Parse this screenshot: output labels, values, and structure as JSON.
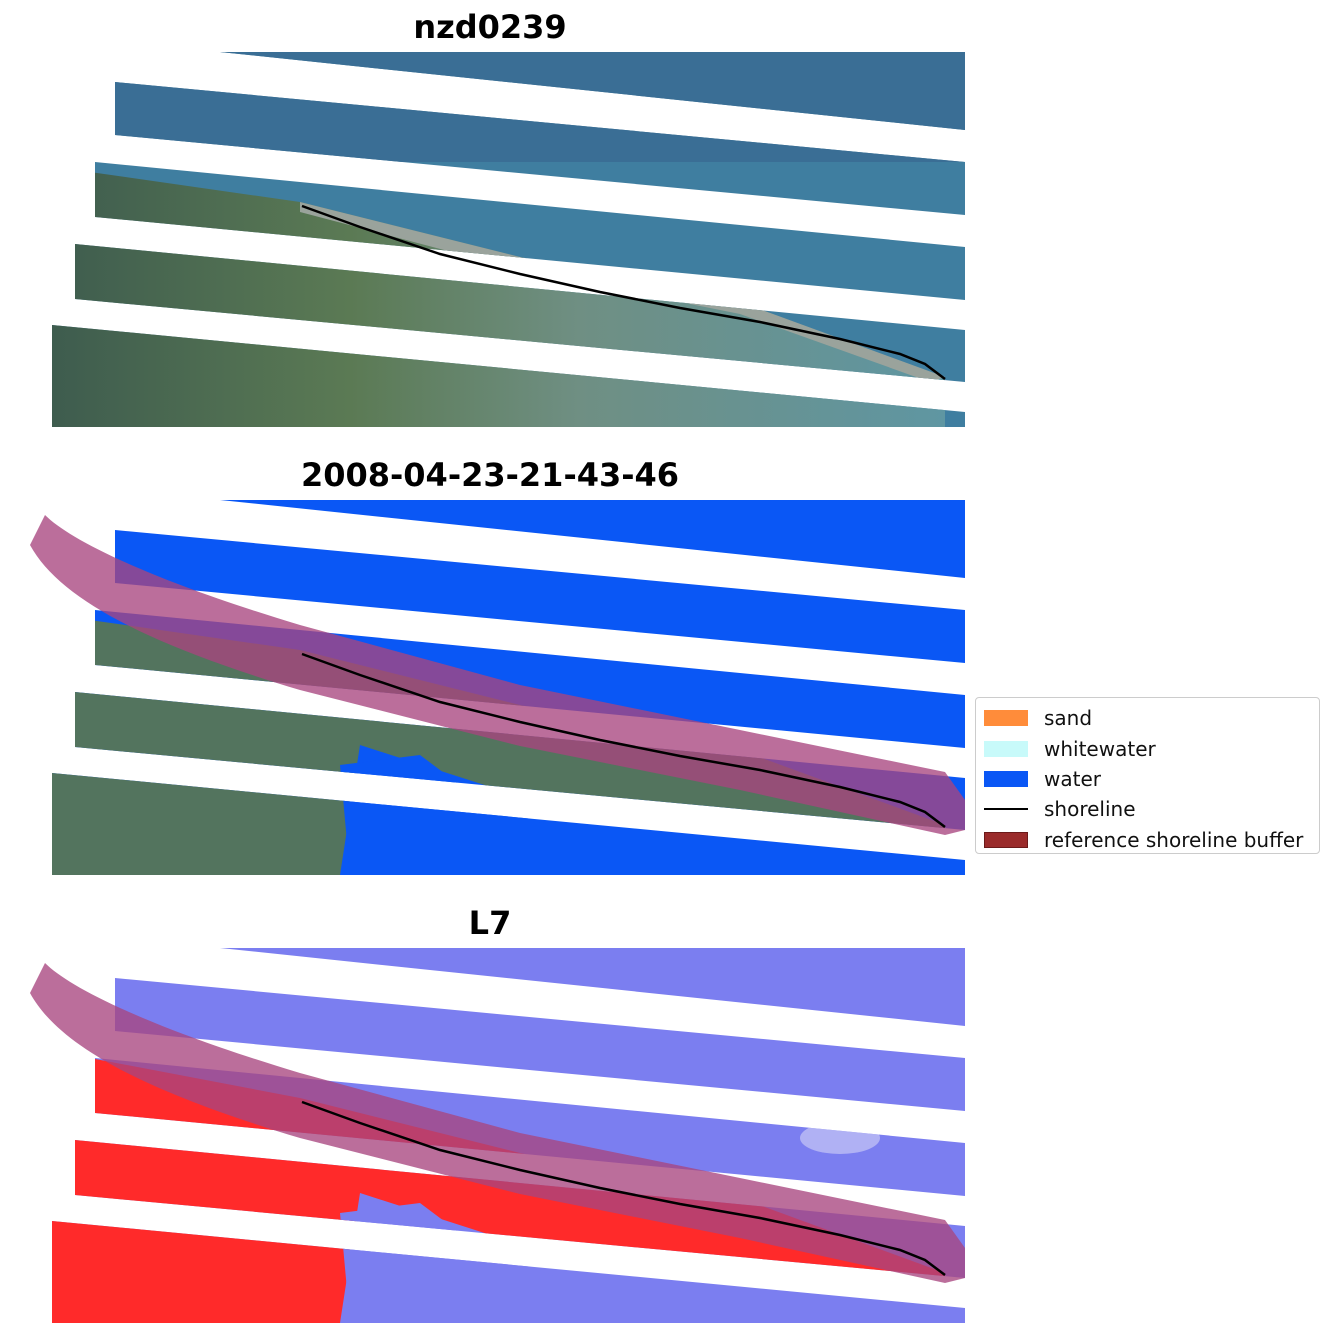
{
  "panels": [
    {
      "title": "nzd0239",
      "mode": "rgb"
    },
    {
      "title": "2008-04-23-21-43-46",
      "mode": "classified"
    },
    {
      "title": "L7",
      "mode": "index"
    }
  ],
  "colors": {
    "water_rgb": "#3f7ea0",
    "land_rgb": "#4f6e52",
    "water_class": "#0a57f5",
    "index_water": "#7b7ef0",
    "index_land": "#ff2a2a",
    "buffer": "#a8457f",
    "shoreline": "#000000"
  },
  "legend": {
    "items": [
      {
        "label": "sand",
        "color": "#ff8c3a",
        "kind": "patch"
      },
      {
        "label": "whitewater",
        "color": "#c8fafa",
        "kind": "patch"
      },
      {
        "label": "water",
        "color": "#0a57f5",
        "kind": "patch"
      },
      {
        "label": "shoreline",
        "color": "#000000",
        "kind": "line"
      },
      {
        "label": "reference shoreline buffer",
        "color": "#9a2b2b",
        "kind": "patch"
      }
    ]
  }
}
